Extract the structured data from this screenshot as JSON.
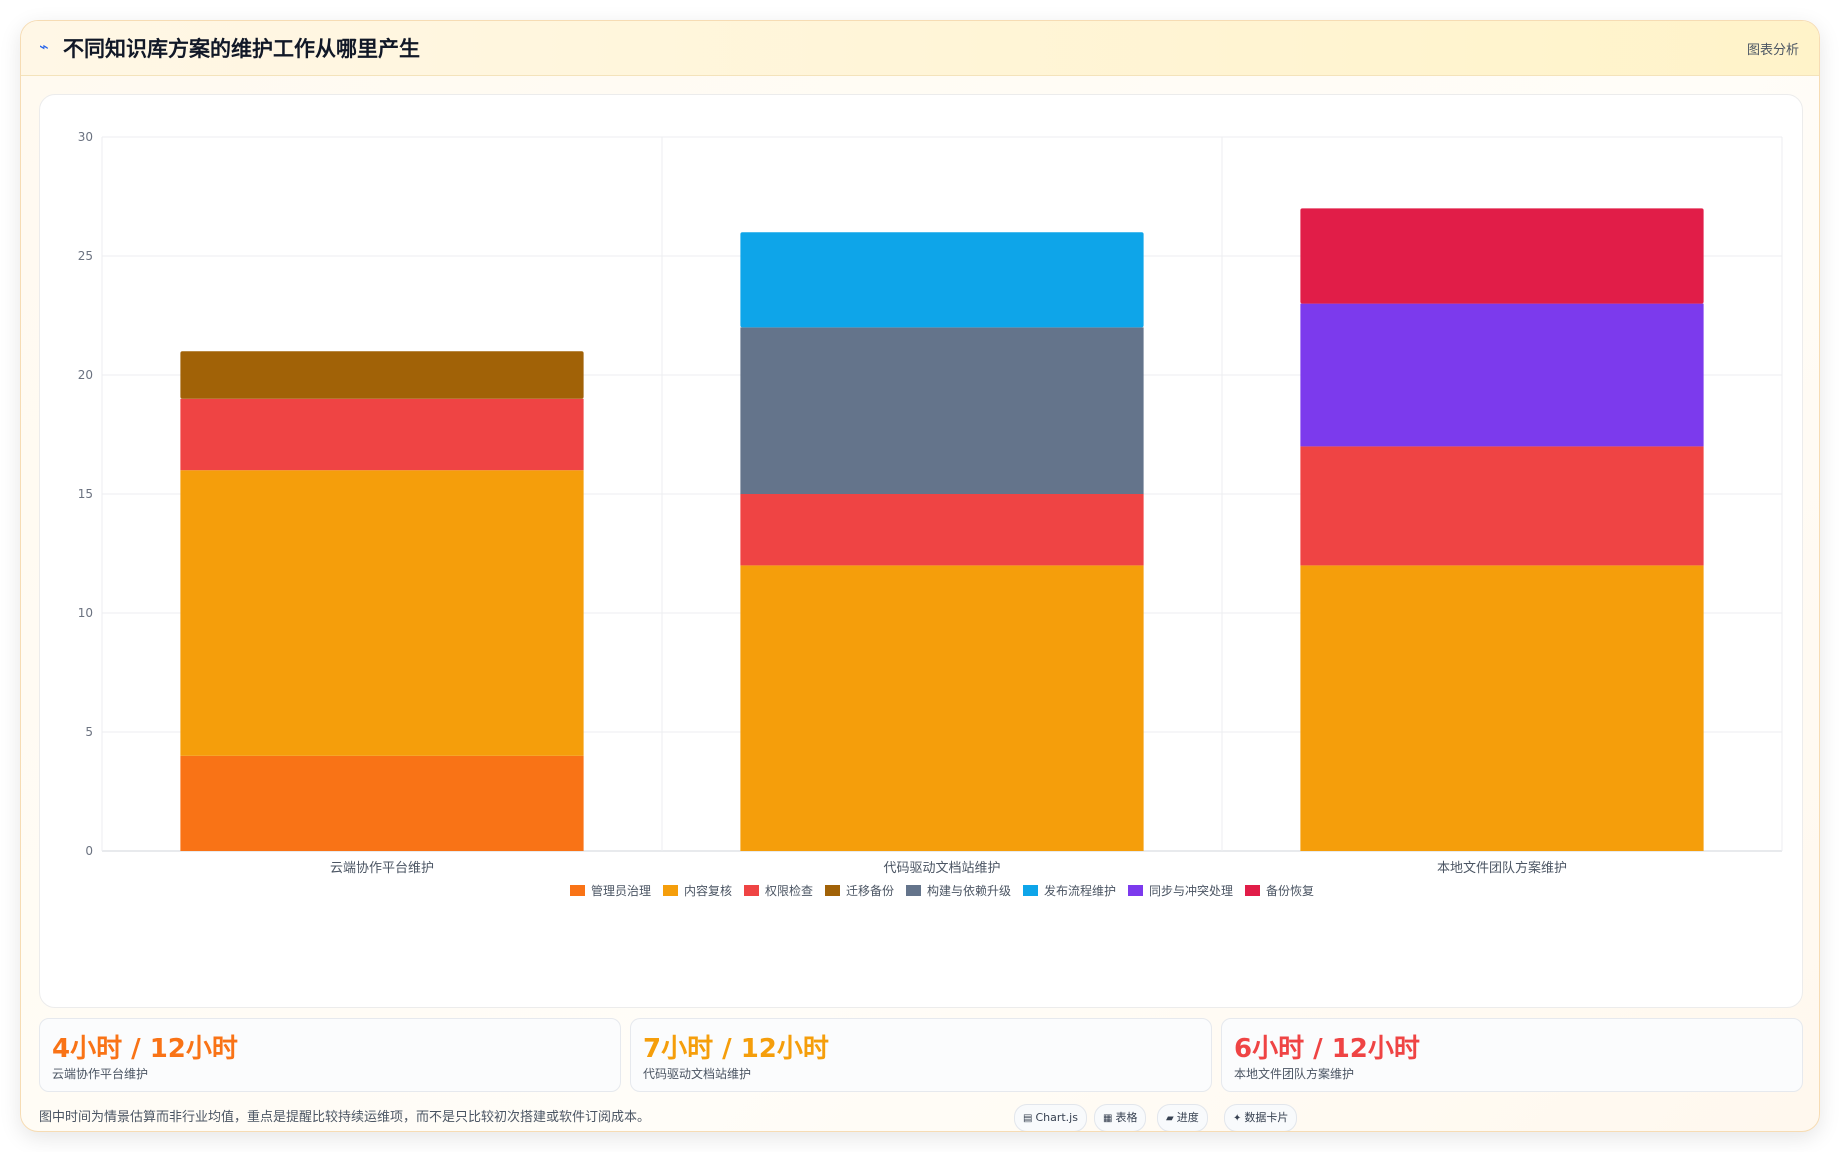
{
  "header": {
    "icon": "chart-line-icon",
    "title": "不同知识库方案的维护工作从哪里产生",
    "tag": "图表分析"
  },
  "chart_data": {
    "type": "bar",
    "stacked": true,
    "categories": [
      "云端协作平台维护",
      "代码驱动文档站维护",
      "本地文件团队方案维护"
    ],
    "series": [
      {
        "name": "管理员治理",
        "color": "#f97316",
        "values": [
          4,
          0,
          0
        ]
      },
      {
        "name": "内容复核",
        "color": "#f59e0b",
        "values": [
          12,
          12,
          12
        ]
      },
      {
        "name": "权限检查",
        "color": "#ef4444",
        "values": [
          3,
          3,
          5
        ]
      },
      {
        "name": "迁移备份",
        "color": "#a16207",
        "values": [
          2,
          0,
          0
        ]
      },
      {
        "name": "构建与依赖升级",
        "color": "#64748b",
        "values": [
          0,
          7,
          0
        ]
      },
      {
        "name": "发布流程维护",
        "color": "#0ea5e9",
        "values": [
          0,
          4,
          0
        ]
      },
      {
        "name": "同步与冲突处理",
        "color": "#7c3aed",
        "values": [
          0,
          0,
          6
        ]
      },
      {
        "name": "备份恢复",
        "color": "#e11d48",
        "values": [
          0,
          0,
          4
        ]
      }
    ],
    "ylim": [
      0,
      30
    ],
    "yticks": [
      0,
      5,
      10,
      15,
      20,
      25,
      30
    ],
    "grid": true,
    "legend": "bottom"
  },
  "kpis": [
    {
      "value": "4小时 / 12小时",
      "label": "云端协作平台维护",
      "color": "#f97316"
    },
    {
      "value": "7小时 / 12小时",
      "label": "代码驱动文档站维护",
      "color": "#f59e0b"
    },
    {
      "value": "6小时 / 12小时",
      "label": "本地文件团队方案维护",
      "color": "#ef4444"
    }
  ],
  "note": "图中时间为情景估算而非行业均值，重点是提醒比较持续运维项，而不是只比较初次搭建或软件订阅成本。",
  "chips": [
    {
      "icon": "chart-icon",
      "glyph": "▤",
      "label": "Chart.js"
    },
    {
      "icon": "table-icon",
      "glyph": "▦",
      "label": "表格"
    },
    {
      "icon": "progress-icon",
      "glyph": "▰",
      "label": "进度"
    },
    {
      "icon": "card-icon",
      "glyph": "✦",
      "label": "数据卡片"
    }
  ]
}
